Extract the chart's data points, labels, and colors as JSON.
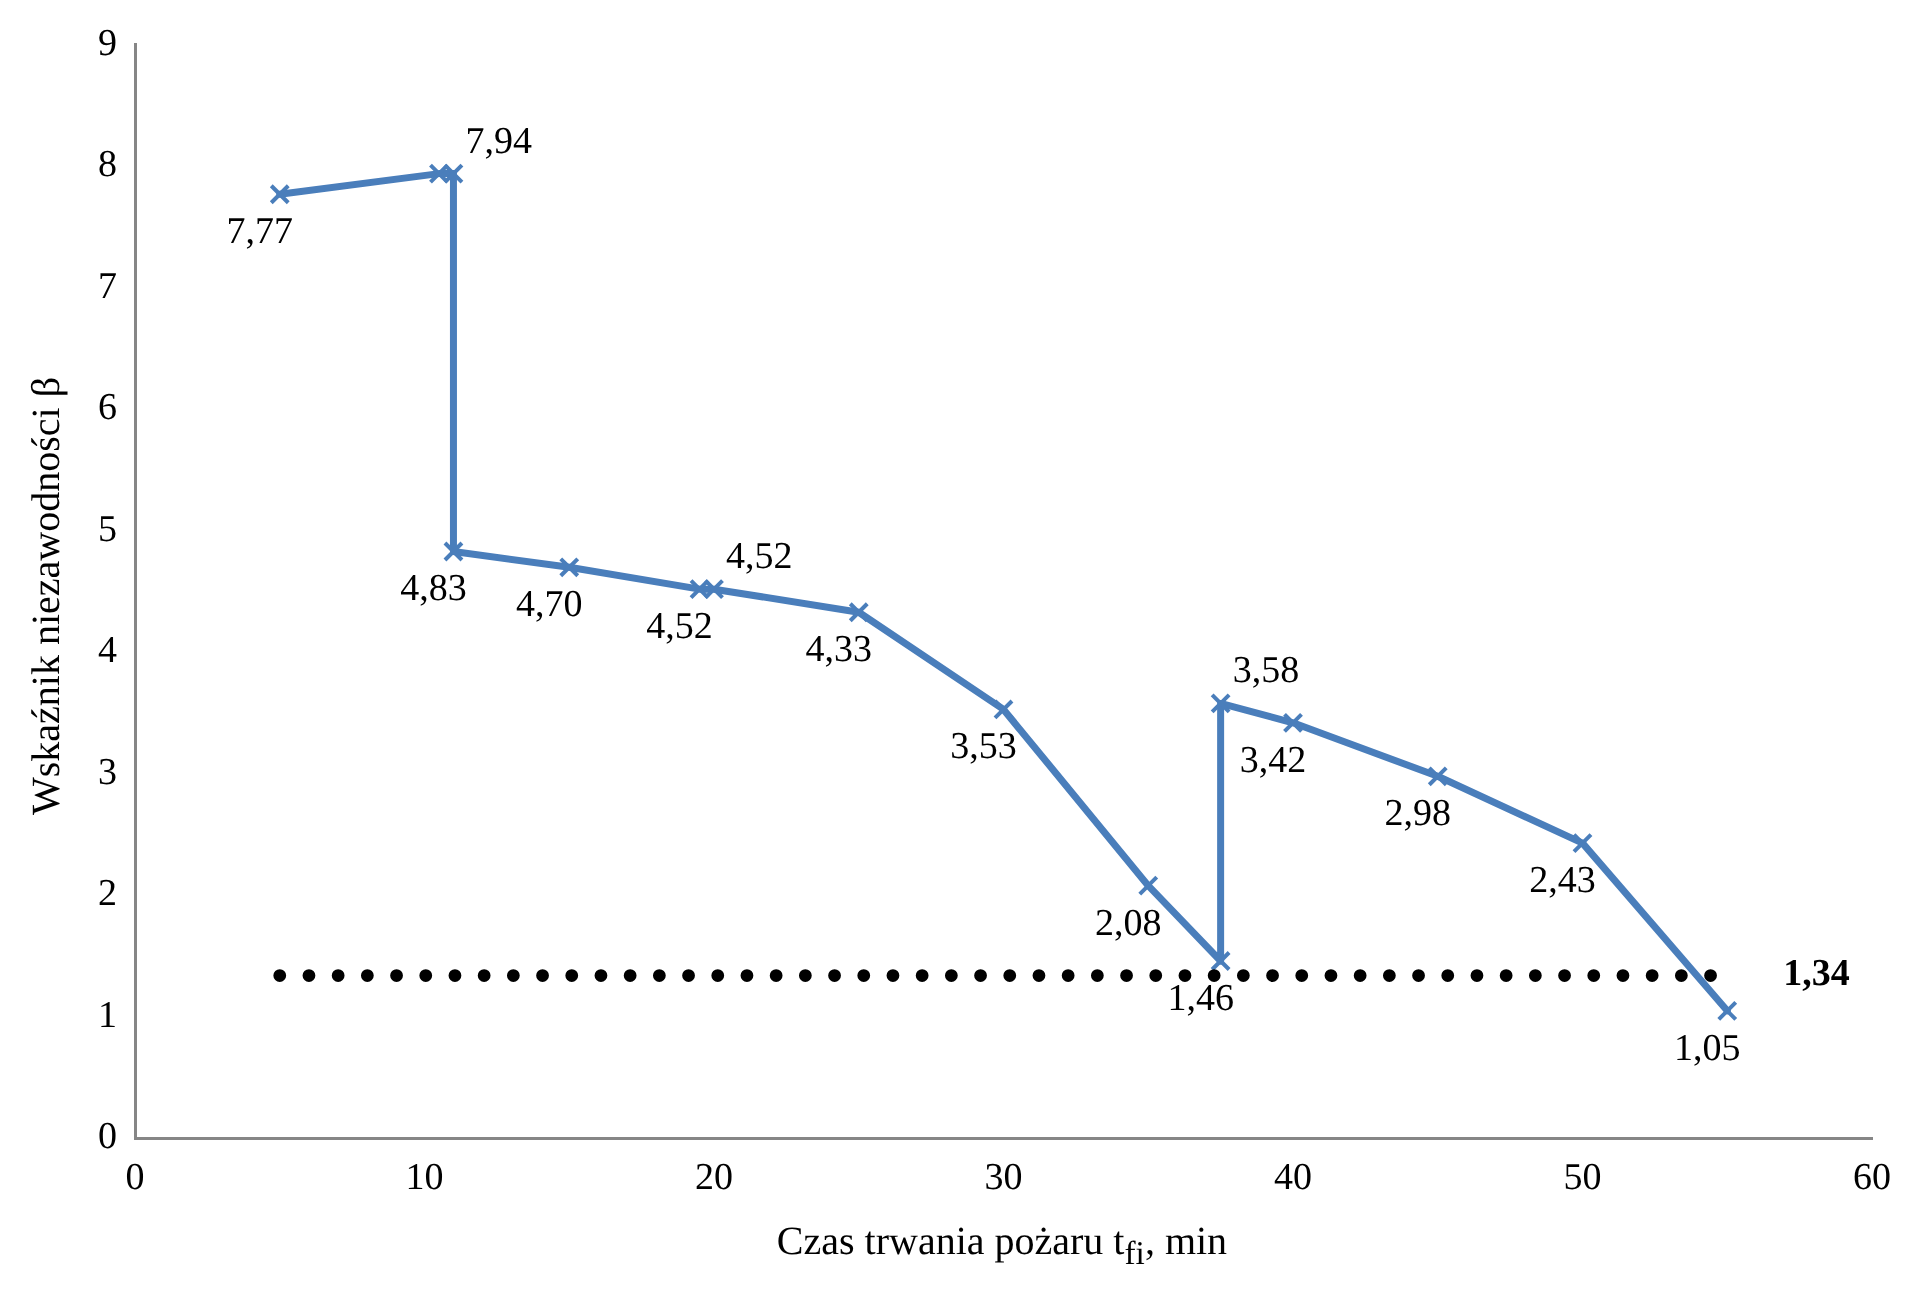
{
  "chart_data": {
    "type": "line",
    "xlabel": "Czas trwania pożaru t$_{fi}$, min",
    "ylabel": "Wskaźnik niezawodności β",
    "x": [
      5,
      10.5,
      11,
      11,
      15,
      19.5,
      20,
      25,
      30,
      35,
      37.5,
      37.5,
      40,
      45,
      50,
      55
    ],
    "series": [
      {
        "color": "#4a7ebb",
        "values": [
          7.77,
          7.94,
          7.94,
          4.83,
          4.7,
          4.52,
          4.52,
          4.33,
          3.53,
          2.08,
          1.46,
          3.58,
          3.42,
          2.98,
          2.43,
          1.05
        ],
        "value_labels": [
          "7,77",
          null,
          "7,94",
          "4,83",
          "4,70",
          "4,52",
          "4,52",
          "4,33",
          "3,53",
          "2,08",
          "1,46",
          "3,58",
          "3,42",
          "2,98",
          "2,43",
          "1,05"
        ]
      }
    ],
    "xlim": [
      0,
      60
    ],
    "xticks": [
      0,
      10,
      20,
      30,
      40,
      50,
      60
    ],
    "ylim": [
      0,
      9
    ],
    "yticks": [
      0,
      1,
      2,
      3,
      4,
      5,
      6,
      7,
      8,
      9
    ],
    "grid": false,
    "legend": false,
    "marker": "cross",
    "line_style": "solid",
    "ref_lines": [
      {
        "axis": "y",
        "value": 1.34,
        "label": "1,34",
        "color": "#000000",
        "line_style": "dotted"
      }
    ]
  }
}
